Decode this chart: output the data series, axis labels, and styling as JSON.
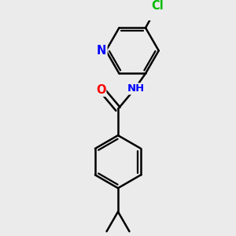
{
  "background_color": "#ebebeb",
  "bond_color": "#000000",
  "bond_width": 1.8,
  "atom_colors": {
    "C": "#000000",
    "N": "#0000ff",
    "O": "#ff0000",
    "Cl": "#00bb00",
    "H": "#000000"
  },
  "font_size": 9.5,
  "figsize": [
    3.0,
    3.0
  ],
  "dpi": 100
}
